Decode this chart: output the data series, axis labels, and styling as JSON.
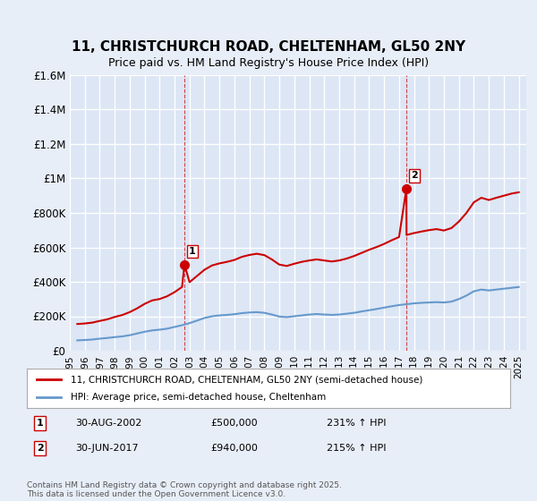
{
  "title": "11, CHRISTCHURCH ROAD, CHELTENHAM, GL50 2NY",
  "subtitle": "Price paid vs. HM Land Registry's House Price Index (HPI)",
  "background_color": "#e8eef8",
  "plot_bg_color": "#dce6f5",
  "grid_color": "#ffffff",
  "ylim": [
    0,
    1600000
  ],
  "yticks": [
    0,
    200000,
    400000,
    600000,
    800000,
    1000000,
    1200000,
    1400000,
    1600000
  ],
  "ytick_labels": [
    "£0",
    "£200K",
    "£400K",
    "£600K",
    "£800K",
    "£1M",
    "£1.2M",
    "£1.4M",
    "£1.6M"
  ],
  "xlabel_start_year": 1995,
  "xlabel_end_year": 2025,
  "legend_line1": "11, CHRISTCHURCH ROAD, CHELTENHAM, GL50 2NY (semi-detached house)",
  "legend_line2": "HPI: Average price, semi-detached house, Cheltenham",
  "line1_color": "#cc0000",
  "line2_color": "#6699cc",
  "vline_color": "#cc0000",
  "marker1_date": 2002.66,
  "marker1_price": 500000,
  "marker1_label": "1",
  "marker2_date": 2017.49,
  "marker2_price": 940000,
  "marker2_label": "2",
  "annotation1": "1    30-AUG-2002         £500,000         231% ↑ HPI",
  "annotation2": "2    30-JUN-2017           £940,000         215% ↑ HPI",
  "footer": "Contains HM Land Registry data © Crown copyright and database right 2025.\nThis data is licensed under the Open Government Licence v3.0.",
  "hpi_series": {
    "years": [
      1995.5,
      1996.0,
      1996.5,
      1997.0,
      1997.5,
      1998.0,
      1998.5,
      1999.0,
      1999.5,
      2000.0,
      2000.5,
      2001.0,
      2001.5,
      2002.0,
      2002.5,
      2003.0,
      2003.5,
      2004.0,
      2004.5,
      2005.0,
      2005.5,
      2006.0,
      2006.5,
      2007.0,
      2007.5,
      2008.0,
      2008.5,
      2009.0,
      2009.5,
      2010.0,
      2010.5,
      2011.0,
      2011.5,
      2012.0,
      2012.5,
      2013.0,
      2013.5,
      2014.0,
      2014.5,
      2015.0,
      2015.5,
      2016.0,
      2016.5,
      2017.0,
      2017.5,
      2018.0,
      2018.5,
      2019.0,
      2019.5,
      2020.0,
      2020.5,
      2021.0,
      2021.5,
      2022.0,
      2022.5,
      2023.0,
      2023.5,
      2024.0,
      2024.5,
      2025.0
    ],
    "values": [
      60000,
      62000,
      65000,
      70000,
      74000,
      79000,
      83000,
      90000,
      100000,
      110000,
      118000,
      122000,
      128000,
      138000,
      148000,
      160000,
      175000,
      190000,
      200000,
      205000,
      208000,
      212000,
      218000,
      222000,
      224000,
      220000,
      210000,
      198000,
      195000,
      200000,
      205000,
      210000,
      213000,
      210000,
      208000,
      210000,
      215000,
      220000,
      228000,
      235000,
      242000,
      250000,
      258000,
      265000,
      270000,
      275000,
      278000,
      280000,
      282000,
      280000,
      285000,
      300000,
      320000,
      345000,
      355000,
      350000,
      355000,
      360000,
      365000,
      370000
    ]
  },
  "price_series": {
    "years": [
      1995.5,
      1996.0,
      1996.5,
      1997.0,
      1997.5,
      1998.0,
      1998.5,
      1999.0,
      1999.5,
      2000.0,
      2000.5,
      2001.0,
      2001.5,
      2002.0,
      2002.5,
      2002.66,
      2003.0,
      2003.5,
      2004.0,
      2004.5,
      2005.0,
      2005.5,
      2006.0,
      2006.5,
      2007.0,
      2007.5,
      2008.0,
      2008.5,
      2009.0,
      2009.5,
      2010.0,
      2010.5,
      2011.0,
      2011.5,
      2012.0,
      2012.5,
      2013.0,
      2013.5,
      2014.0,
      2014.5,
      2015.0,
      2015.5,
      2016.0,
      2016.5,
      2017.0,
      2017.49,
      2017.5,
      2018.0,
      2018.5,
      2019.0,
      2019.5,
      2020.0,
      2020.5,
      2021.0,
      2021.5,
      2022.0,
      2022.5,
      2023.0,
      2023.5,
      2024.0,
      2024.5,
      2025.0
    ],
    "values": [
      155000,
      158000,
      163000,
      173000,
      182000,
      196000,
      207000,
      224000,
      246000,
      272000,
      292000,
      300000,
      316000,
      340000,
      370000,
      500000,
      398000,
      434000,
      470000,
      495000,
      507000,
      516000,
      527000,
      545000,
      556000,
      563000,
      555000,
      530000,
      500000,
      492000,
      505000,
      516000,
      524000,
      530000,
      524000,
      518000,
      524000,
      535000,
      550000,
      568000,
      586000,
      602000,
      620000,
      641000,
      660000,
      940000,
      672000,
      683000,
      692000,
      700000,
      706000,
      698000,
      712000,
      750000,
      800000,
      862000,
      888000,
      875000,
      888000,
      900000,
      912000,
      920000
    ]
  }
}
